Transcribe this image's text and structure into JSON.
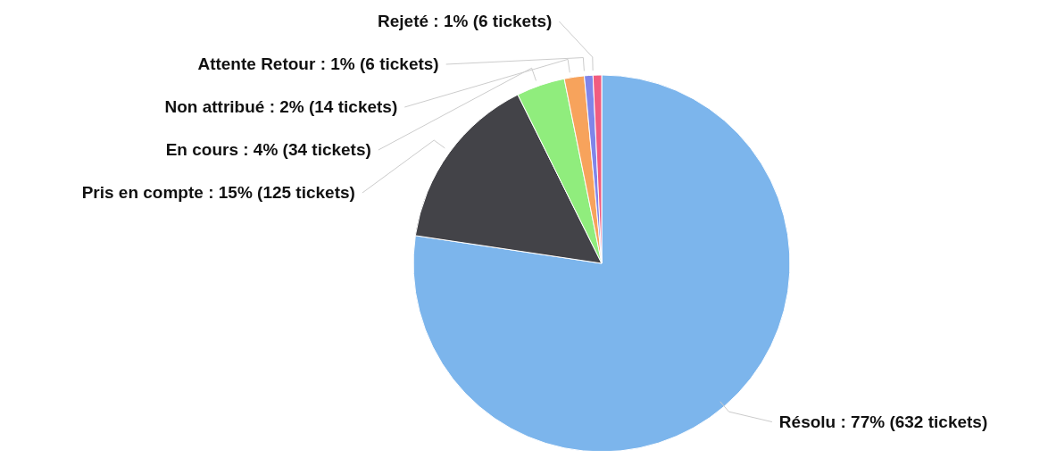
{
  "chart_data": {
    "type": "pie",
    "categories": [
      "Résolu",
      "Pris en compte",
      "En cours",
      "Non attribué",
      "Attente Retour",
      "Rejeté"
    ],
    "values": [
      632,
      125,
      34,
      14,
      6,
      6
    ],
    "colors": [
      "#7cb5ec",
      "#434348",
      "#90ed7d",
      "#f7a35c",
      "#8085e9",
      "#f15c80"
    ],
    "value_labels": [
      "77% (632 tickets)",
      "15% (125 tickets)",
      "4% (34 tickets)",
      "2% (14 tickets)",
      "1% (6 tickets)",
      "1% (6 tickets)"
    ],
    "legend": false
  }
}
